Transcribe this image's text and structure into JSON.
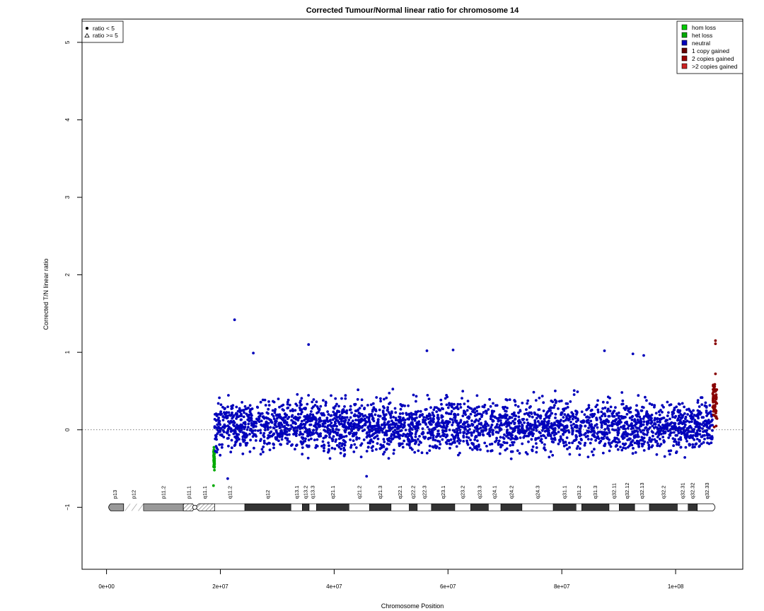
{
  "chart_data": {
    "type": "scatter",
    "title": "Corrected Tumour/Normal linear ratio for chromosome  14",
    "xlabel": "Chromosome Position",
    "ylabel": "Corrected T/N linear ratio",
    "xlim": [
      -4300000,
      111800000
    ],
    "ylim": [
      -1.8,
      5.3
    ],
    "x_ticks": [
      {
        "value": 0,
        "label": "0e+00"
      },
      {
        "value": 20000000,
        "label": "2e+07"
      },
      {
        "value": 40000000,
        "label": "4e+07"
      },
      {
        "value": 60000000,
        "label": "6e+07"
      },
      {
        "value": 80000000,
        "label": "8e+07"
      },
      {
        "value": 100000000,
        "label": "1e+08"
      }
    ],
    "y_ticks": [
      {
        "value": -1,
        "label": "−1"
      },
      {
        "value": 0,
        "label": "0"
      },
      {
        "value": 1,
        "label": "1"
      },
      {
        "value": 2,
        "label": "2"
      },
      {
        "value": 3,
        "label": "3"
      },
      {
        "value": 4,
        "label": "4"
      },
      {
        "value": 5,
        "label": "5"
      }
    ],
    "reference_line": 0,
    "point_legend": {
      "placement": "top-left",
      "entries": [
        {
          "label": "ratio < 5",
          "symbol": "dot"
        },
        {
          "label": "ratio >= 5",
          "symbol": "triangle"
        }
      ]
    },
    "legend": {
      "placement": "top-right",
      "entries": [
        {
          "label": "hom loss",
          "color": "#00cc00"
        },
        {
          "label": "het loss",
          "color": "#00aa00"
        },
        {
          "label": "neutral",
          "color": "#0000bb"
        },
        {
          "label": "1 copy gained",
          "color": "#660000"
        },
        {
          "label": "2 copies gained",
          "color": "#990000"
        },
        {
          "label": ">2 copies gained",
          "color": "#cc2222"
        }
      ]
    },
    "series": [
      {
        "name": "het loss",
        "color": "#00aa00",
        "x_range": [
          18800000,
          19000000
        ],
        "y_range": [
          -0.6,
          -0.15
        ]
      },
      {
        "name": "neutral",
        "color": "#0000bb",
        "x_range": [
          19000000,
          106500000
        ],
        "y_range": [
          -0.5,
          0.6
        ]
      },
      {
        "name": "1 copy gained",
        "color": "#880000",
        "x_range": [
          106500000,
          107300000
        ],
        "y_range": [
          -0.2,
          0.95
        ]
      }
    ],
    "outliers": [
      {
        "x": 22500000,
        "y": 1.42,
        "series": "neutral"
      },
      {
        "x": 35500000,
        "y": 1.1,
        "series": "neutral"
      },
      {
        "x": 25800000,
        "y": 0.99,
        "series": "neutral"
      },
      {
        "x": 56300000,
        "y": 1.02,
        "series": "neutral"
      },
      {
        "x": 60900000,
        "y": 1.03,
        "series": "neutral"
      },
      {
        "x": 87500000,
        "y": 1.02,
        "series": "neutral"
      },
      {
        "x": 92500000,
        "y": 0.98,
        "series": "neutral"
      },
      {
        "x": 94400000,
        "y": 0.96,
        "series": "neutral"
      },
      {
        "x": 107000000,
        "y": 1.15,
        "series": "1 copy gained"
      },
      {
        "x": 107000000,
        "y": 1.11,
        "series": "1 copy gained"
      },
      {
        "x": 18800000,
        "y": -0.72,
        "series": "het loss"
      },
      {
        "x": 21300000,
        "y": -0.63,
        "series": "neutral"
      },
      {
        "x": 45700000,
        "y": -0.6,
        "series": "neutral"
      }
    ],
    "ideogram": {
      "y": -1,
      "bands": [
        {
          "name": "p13",
          "start": 0,
          "end": 3000000,
          "stain": "gpos",
          "label": "p13"
        },
        {
          "name": "p12",
          "start": 3000000,
          "end": 6500000,
          "stain": "stalk",
          "label": "p12"
        },
        {
          "name": "p11.2",
          "start": 6500000,
          "end": 13500000,
          "stain": "gvar",
          "label": "p11.2"
        },
        {
          "name": "p11.1",
          "start": 13500000,
          "end": 15500000,
          "stain": "acen",
          "label": "p11.1"
        },
        {
          "name": "q11.1",
          "start": 15500000,
          "end": 19000000,
          "stain": "acen",
          "label": "q11.1"
        },
        {
          "name": "q11.2",
          "start": 19000000,
          "end": 24300000,
          "stain": "gneg",
          "label": "q11.2"
        },
        {
          "name": "q12",
          "start": 24300000,
          "end": 32400000,
          "stain": "gpos",
          "label": "q12"
        },
        {
          "name": "q13.1",
          "start": 32400000,
          "end": 34400000,
          "stain": "gneg",
          "label": "q13.1"
        },
        {
          "name": "q13.2",
          "start": 34400000,
          "end": 35600000,
          "stain": "gpos",
          "label": "q13.2"
        },
        {
          "name": "q13.3",
          "start": 35600000,
          "end": 36900000,
          "stain": "gneg",
          "label": "q13.3"
        },
        {
          "name": "q21.1",
          "start": 36900000,
          "end": 42600000,
          "stain": "gpos",
          "label": "q21.1"
        },
        {
          "name": "q21.2",
          "start": 42600000,
          "end": 46200000,
          "stain": "gneg",
          "label": "q21.2"
        },
        {
          "name": "q21.3",
          "start": 46200000,
          "end": 50000000,
          "stain": "gpos",
          "label": "q21.3"
        },
        {
          "name": "q22.1",
          "start": 50000000,
          "end": 53200000,
          "stain": "gneg",
          "label": "q22.1"
        },
        {
          "name": "q22.2",
          "start": 53200000,
          "end": 54600000,
          "stain": "gpos",
          "label": "q22.2"
        },
        {
          "name": "q22.3",
          "start": 54600000,
          "end": 57100000,
          "stain": "gneg",
          "label": "q22.3"
        },
        {
          "name": "q23.1",
          "start": 57100000,
          "end": 61200000,
          "stain": "gpos",
          "label": "q23.1"
        },
        {
          "name": "q23.2",
          "start": 61200000,
          "end": 64000000,
          "stain": "gneg",
          "label": "q23.2"
        },
        {
          "name": "q23.3",
          "start": 64000000,
          "end": 67100000,
          "stain": "gpos",
          "label": "q23.3"
        },
        {
          "name": "q24.1",
          "start": 67100000,
          "end": 69300000,
          "stain": "gneg",
          "label": "q24.1"
        },
        {
          "name": "q24.2",
          "start": 69300000,
          "end": 73000000,
          "stain": "gpos",
          "label": "q24.2"
        },
        {
          "name": "q24.3",
          "start": 73000000,
          "end": 78500000,
          "stain": "gneg",
          "label": "q24.3"
        },
        {
          "name": "q31.1",
          "start": 78500000,
          "end": 82500000,
          "stain": "gpos",
          "label": "q31.1"
        },
        {
          "name": "q31.2",
          "start": 82500000,
          "end": 83500000,
          "stain": "gneg",
          "label": "q31.2"
        },
        {
          "name": "q31.3",
          "start": 83500000,
          "end": 88300000,
          "stain": "gpos",
          "label": "q31.3"
        },
        {
          "name": "q32.11",
          "start": 88300000,
          "end": 90100000,
          "stain": "gneg",
          "label": "q32.11"
        },
        {
          "name": "q32.12",
          "start": 90100000,
          "end": 92800000,
          "stain": "gpos",
          "label": "q32.12"
        },
        {
          "name": "q32.13",
          "start": 92800000,
          "end": 95400000,
          "stain": "gneg",
          "label": "q32.13"
        },
        {
          "name": "q32.2",
          "start": 95400000,
          "end": 100300000,
          "stain": "gpos",
          "label": "q32.2"
        },
        {
          "name": "q32.31",
          "start": 100300000,
          "end": 102200000,
          "stain": "gneg",
          "label": "q32.31"
        },
        {
          "name": "q32.32",
          "start": 102200000,
          "end": 103800000,
          "stain": "gpos",
          "label": "q32.32"
        },
        {
          "name": "q32.33",
          "start": 103800000,
          "end": 107300000,
          "stain": "gneg",
          "label": "q32.33"
        }
      ]
    }
  }
}
